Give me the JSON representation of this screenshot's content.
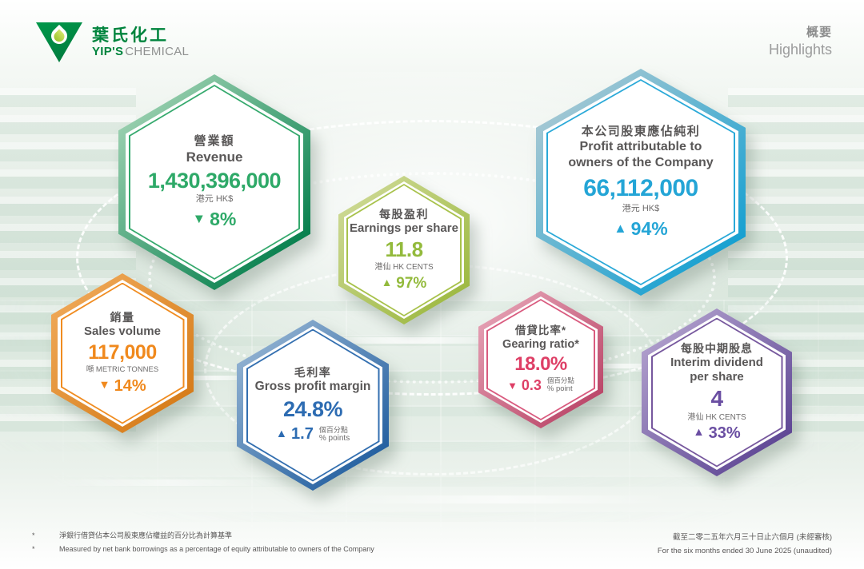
{
  "brand": {
    "name_zh": "葉氏化工",
    "name_en_bold": "YIP'S",
    "name_en_light": "CHEMICAL"
  },
  "page_title": {
    "zh": "概要",
    "en": "Highlights"
  },
  "badges": [
    {
      "id": "revenue",
      "title_zh": "營業額",
      "title_en": "Revenue",
      "value": "1,430,396,000",
      "unit": "港元 HK$",
      "change_arrow": "▼",
      "change_value": "8%",
      "colors": {
        "border_light": "#9ed2b2",
        "border_dark": "#007c49",
        "ring": "#35a96d",
        "accent": "#2ea968"
      }
    },
    {
      "id": "profit-attributable",
      "title_zh": "本公司股東應佔純利",
      "title_en": "Profit attributable to owners of the Company",
      "value": "66,112,000",
      "unit": "港元 HK$",
      "change_arrow": "▲",
      "change_value": "94%",
      "colors": {
        "border_light": "#a9c9d3",
        "border_dark": "#0f9ed1",
        "ring": "#2aa9d8",
        "accent": "#24a5d6"
      }
    },
    {
      "id": "earnings-per-share",
      "title_zh": "每股盈利",
      "title_en": "Earnings per share",
      "value": "11.8",
      "unit": "港仙 HK CENTS",
      "change_arrow": "▲",
      "change_value": "97%",
      "colors": {
        "border_light": "#cdd994",
        "border_dark": "#9cb83f",
        "ring": "#a8c24c",
        "accent": "#93ba3c"
      }
    },
    {
      "id": "sales-volume",
      "title_zh": "銷量",
      "title_en": "Sales volume",
      "value": "117,000",
      "unit": "噸 METRIC TONNES",
      "change_arrow": "▼",
      "change_value": "14%",
      "colors": {
        "border_light": "#efa857",
        "border_dark": "#d57a17",
        "ring": "#f08c20",
        "accent": "#f0891d"
      }
    },
    {
      "id": "gross-profit-margin",
      "title_zh": "毛利率",
      "title_en": "Gross profit margin",
      "value": "24.8%",
      "change_arrow": "▲",
      "change_value": "1.7",
      "change_unit_zh": "個百分點",
      "change_unit_en": "% points",
      "colors": {
        "border_light": "#93b3d2",
        "border_dark": "#1f5c9e",
        "ring": "#336fb0",
        "accent": "#2d6cb2"
      }
    },
    {
      "id": "gearing-ratio",
      "title_zh": "借貸比率*",
      "title_en": "Gearing ratio*",
      "value": "18.0%",
      "change_arrow": "▼",
      "change_value": "0.3",
      "change_unit_zh": "個百分點",
      "change_unit_en": "% point",
      "colors": {
        "border_light": "#e5a1b4",
        "border_dark": "#b94366",
        "ring": "#d95b7f",
        "accent": "#de3f66"
      }
    },
    {
      "id": "interim-dividend-per-share",
      "title_zh": "每股中期股息",
      "title_en": "Interim dividend per share",
      "value": "4",
      "unit": "港仙 HK CENTS",
      "change_arrow": "▲",
      "change_value": "33%",
      "colors": {
        "border_light": "#b1a0cd",
        "border_dark": "#5b4392",
        "ring": "#77589e",
        "accent": "#6a4ea2"
      }
    }
  ],
  "footnotes": {
    "marker": "*",
    "zh": "淨銀行借貸佔本公司股東應佔權益的百分比為計算基準",
    "en": "Measured by net bank borrowings as a percentage of equity attributable to owners of the Company"
  },
  "period": {
    "zh": "截至二零二五年六月三十日止六個月 (未經審核)",
    "en": "For the six months ended 30 June 2025 (unaudited)"
  },
  "chart_data": {
    "type": "table",
    "title": "概要 Highlights — For the six months ended 30 June 2025 (unaudited)",
    "columns": [
      "metric",
      "value",
      "unit",
      "change_direction",
      "change"
    ],
    "rows": [
      [
        "Revenue 營業額",
        "1430396000",
        "HK$ 港元",
        "down",
        "8%"
      ],
      [
        "Profit attributable to owners of the Company 本公司股東應佔純利",
        "66112000",
        "HK$ 港元",
        "up",
        "94%"
      ],
      [
        "Earnings per share 每股盈利",
        "11.8",
        "HK cents 港仙",
        "up",
        "97%"
      ],
      [
        "Sales volume 銷量",
        "117000",
        "metric tonnes 噸",
        "down",
        "14%"
      ],
      [
        "Gross profit margin 毛利率",
        "24.8%",
        "",
        "up",
        "1.7 % points 個百分點"
      ],
      [
        "Gearing ratio* 借貸比率*",
        "18.0%",
        "",
        "down",
        "0.3 % point 個百分點"
      ],
      [
        "Interim dividend per share 每股中期股息",
        "4",
        "HK cents 港仙",
        "up",
        "33%"
      ]
    ]
  }
}
